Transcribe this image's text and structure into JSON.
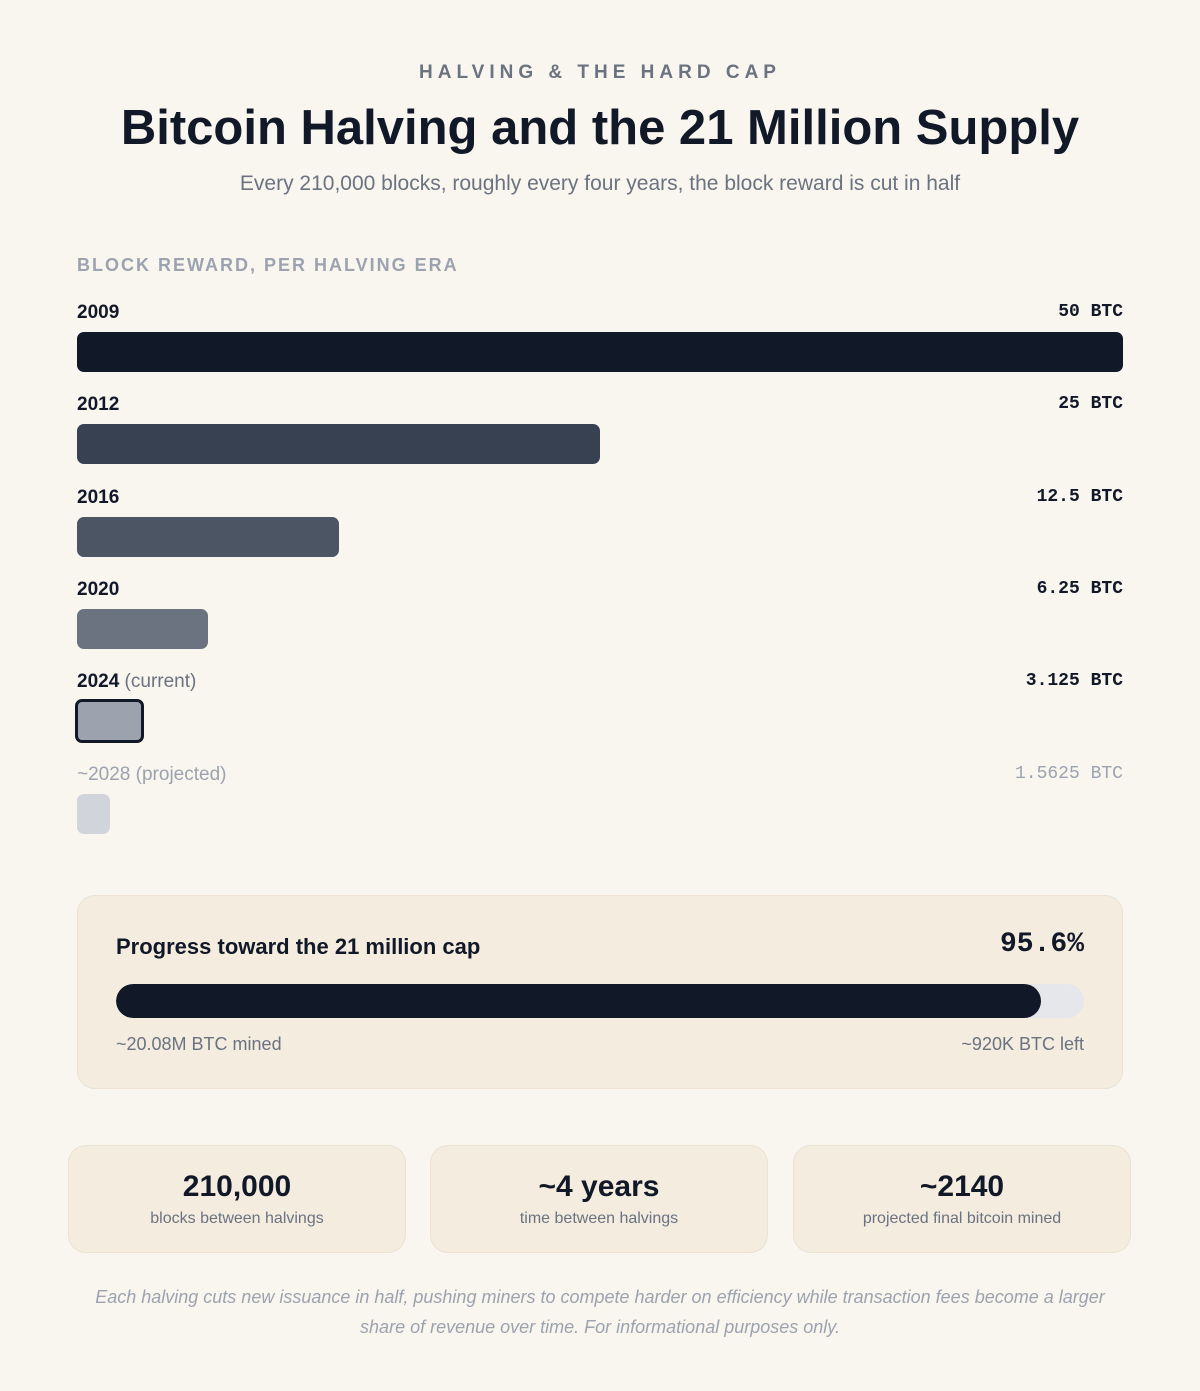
{
  "header": {
    "eyebrow": "HALVING & THE HARD CAP",
    "title": "Bitcoin Halving and the 21 Million Supply",
    "subtitle": "Every 210,000 blocks, roughly every four years, the block reward is cut in half"
  },
  "chart_data": {
    "type": "bar",
    "orientation": "horizontal",
    "title": "BLOCK REWARD, PER HALVING ERA",
    "unit": "BTC",
    "xlim": [
      0,
      50
    ],
    "categories": [
      {
        "year": "2009",
        "note": ""
      },
      {
        "year": "2012",
        "note": ""
      },
      {
        "year": "2016",
        "note": ""
      },
      {
        "year": "2020",
        "note": ""
      },
      {
        "year": "2024",
        "note": "(current)"
      },
      {
        "year": "~2028",
        "note": "(projected)"
      }
    ],
    "values": [
      50,
      25,
      12.5,
      6.25,
      3.125,
      1.5625
    ],
    "value_labels": [
      "50 BTC",
      "25 BTC",
      "12.5 BTC",
      "6.25 BTC",
      "3.125 BTC",
      "1.5625 BTC"
    ],
    "current_index": 4,
    "projected_index": 5,
    "colors": [
      "#111827",
      "#374151",
      "#4b5563",
      "#6b7280",
      "#9ca3af",
      "#d1d5db"
    ]
  },
  "progress": {
    "title": "Progress toward the 21 million cap",
    "percent_label": "95.6%",
    "percent": 95.6,
    "mined_label": "~20.08M BTC mined",
    "left_label": "~920K BTC left"
  },
  "stats": [
    {
      "value": "210,000",
      "label": "blocks between halvings"
    },
    {
      "value": "~4 years",
      "label": "time between halvings"
    },
    {
      "value": "~2140",
      "label": "projected final bitcoin mined"
    }
  ],
  "footnote": "Each halving cuts new issuance in half, pushing miners to compete harder on efficiency while transaction fees become a larger share of revenue over time. For informational purposes only."
}
